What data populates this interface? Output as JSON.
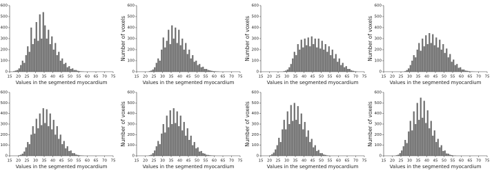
{
  "chart_data": [
    {
      "type": "histogram",
      "xlabel": "Values in the segmented myocardium",
      "color": "#6e6e6e",
      "xlim": [
        15,
        75
      ],
      "ylim": [
        0,
        600
      ],
      "xticks": [
        15,
        20,
        25,
        30,
        35,
        40,
        45,
        50,
        55,
        60,
        65,
        70,
        75
      ],
      "yticks": [
        0,
        100,
        200,
        300,
        400,
        500,
        600
      ],
      "bins": [
        17,
        18,
        19,
        20,
        21,
        22,
        23,
        24,
        25,
        26,
        27,
        28,
        29,
        30,
        31,
        32,
        33,
        34,
        35,
        36,
        37,
        38,
        39,
        40,
        41,
        42,
        43,
        44,
        45,
        46,
        47,
        48,
        49,
        50,
        51,
        52,
        53,
        54,
        55,
        56,
        57,
        58
      ],
      "values": [
        5,
        10,
        15,
        30,
        60,
        100,
        80,
        150,
        230,
        180,
        400,
        250,
        300,
        450,
        280,
        520,
        300,
        540,
        420,
        300,
        380,
        250,
        320,
        200,
        260,
        150,
        180,
        100,
        120,
        70,
        80,
        40,
        50,
        25,
        30,
        15,
        15,
        8,
        5,
        3,
        2
      ]
    },
    {
      "type": "histogram",
      "xlabel": "Values in the segmented myocardium",
      "ylabel": "Number of voxels",
      "color": "#6e6e6e",
      "xlim": [
        15,
        75
      ],
      "ylim": [
        0,
        600
      ],
      "xticks": [
        15,
        20,
        25,
        30,
        35,
        40,
        45,
        50,
        55,
        60,
        65,
        70,
        75
      ],
      "yticks": [
        0,
        100,
        200,
        300,
        400,
        500,
        600
      ],
      "bins": [
        22,
        23,
        24,
        25,
        26,
        27,
        28,
        29,
        30,
        31,
        32,
        33,
        34,
        35,
        36,
        37,
        38,
        39,
        40,
        41,
        42,
        43,
        44,
        45,
        46,
        47,
        48,
        49,
        50,
        51,
        52,
        53,
        54,
        55,
        56,
        57,
        58,
        59,
        60,
        61,
        62,
        63
      ],
      "values": [
        5,
        10,
        20,
        40,
        80,
        120,
        100,
        200,
        310,
        220,
        280,
        380,
        250,
        420,
        300,
        400,
        260,
        380,
        240,
        300,
        200,
        260,
        160,
        200,
        120,
        150,
        90,
        100,
        60,
        70,
        40,
        45,
        25,
        25,
        15,
        12,
        8,
        5,
        4,
        3,
        2
      ]
    },
    {
      "type": "histogram",
      "xlabel": "Values in the segmented myocardium",
      "ylabel": "Number of voxels",
      "color": "#6e6e6e",
      "xlim": [
        15,
        75
      ],
      "ylim": [
        0,
        600
      ],
      "xticks": [
        15,
        20,
        25,
        30,
        35,
        40,
        45,
        50,
        55,
        60,
        65,
        70,
        75
      ],
      "yticks": [
        0,
        100,
        200,
        300,
        400,
        500,
        600
      ],
      "bins": [
        28,
        29,
        30,
        31,
        32,
        33,
        34,
        35,
        36,
        37,
        38,
        39,
        40,
        41,
        42,
        43,
        44,
        45,
        46,
        47,
        48,
        49,
        50,
        51,
        52,
        53,
        54,
        55,
        56,
        57,
        58,
        59,
        60,
        61,
        62,
        63,
        64,
        65,
        66,
        67,
        68,
        69,
        70,
        71
      ],
      "values": [
        5,
        10,
        20,
        40,
        70,
        120,
        180,
        150,
        250,
        200,
        290,
        220,
        300,
        240,
        310,
        230,
        320,
        250,
        300,
        220,
        300,
        210,
        280,
        200,
        250,
        180,
        230,
        150,
        200,
        120,
        160,
        90,
        120,
        60,
        80,
        40,
        50,
        25,
        25,
        12,
        8,
        4,
        2
      ]
    },
    {
      "type": "histogram",
      "xlabel": "Values in the segmented myocardium",
      "ylabel": "Number of voxels",
      "color": "#6e6e6e",
      "xlim": [
        15,
        75
      ],
      "ylim": [
        0,
        600
      ],
      "xticks": [
        15,
        20,
        25,
        30,
        35,
        40,
        45,
        50,
        55,
        60,
        65,
        70,
        75
      ],
      "yticks": [
        0,
        100,
        200,
        300,
        400,
        500,
        600
      ],
      "bins": [
        27,
        28,
        29,
        30,
        31,
        32,
        33,
        34,
        35,
        36,
        37,
        38,
        39,
        40,
        41,
        42,
        43,
        44,
        45,
        46,
        47,
        48,
        49,
        50,
        51,
        52,
        53,
        54,
        55,
        56,
        57,
        58,
        59,
        60,
        61,
        62,
        63,
        64,
        65,
        66,
        67,
        68
      ],
      "values": [
        5,
        15,
        30,
        60,
        100,
        150,
        130,
        200,
        260,
        190,
        300,
        230,
        330,
        250,
        350,
        260,
        340,
        240,
        310,
        220,
        290,
        200,
        250,
        170,
        210,
        130,
        160,
        90,
        110,
        60,
        70,
        35,
        40,
        20,
        20,
        10,
        8,
        5,
        3,
        2,
        1
      ]
    },
    {
      "type": "histogram",
      "xlabel": "Values in the segmented myocardium",
      "color": "#6e6e6e",
      "xlim": [
        15,
        75
      ],
      "ylim": [
        0,
        600
      ],
      "xticks": [
        15,
        20,
        25,
        30,
        35,
        40,
        45,
        50,
        55,
        60,
        65,
        70,
        75
      ],
      "yticks": [
        0,
        100,
        200,
        300,
        400,
        500,
        600
      ],
      "bins": [
        20,
        21,
        22,
        23,
        24,
        25,
        26,
        27,
        28,
        29,
        30,
        31,
        32,
        33,
        34,
        35,
        36,
        37,
        38,
        39,
        40,
        41,
        42,
        43,
        44,
        45,
        46,
        47,
        48,
        49,
        50,
        51,
        52,
        53,
        54,
        55,
        56,
        57,
        58
      ],
      "values": [
        5,
        10,
        20,
        40,
        80,
        130,
        110,
        200,
        280,
        210,
        350,
        260,
        400,
        290,
        450,
        310,
        440,
        280,
        400,
        250,
        340,
        200,
        280,
        160,
        200,
        110,
        140,
        70,
        90,
        45,
        50,
        25,
        25,
        12,
        8,
        5,
        3,
        2
      ]
    },
    {
      "type": "histogram",
      "xlabel": "Values in the segmented myocardium",
      "ylabel": "Number of voxels",
      "color": "#6e6e6e",
      "xlim": [
        15,
        75
      ],
      "ylim": [
        0,
        600
      ],
      "xticks": [
        15,
        20,
        25,
        30,
        35,
        40,
        45,
        50,
        55,
        60,
        65,
        70,
        75
      ],
      "yticks": [
        0,
        100,
        200,
        300,
        400,
        500,
        600
      ],
      "bins": [
        22,
        23,
        24,
        25,
        26,
        27,
        28,
        29,
        30,
        31,
        32,
        33,
        34,
        35,
        36,
        37,
        38,
        39,
        40,
        41,
        42,
        43,
        44,
        45,
        46,
        47,
        48,
        49,
        50,
        51,
        52,
        53,
        54,
        55,
        56,
        57,
        58,
        59,
        60,
        61
      ],
      "values": [
        5,
        10,
        25,
        50,
        90,
        140,
        110,
        210,
        300,
        220,
        380,
        270,
        430,
        300,
        450,
        310,
        420,
        280,
        380,
        240,
        320,
        190,
        260,
        150,
        190,
        100,
        130,
        70,
        80,
        40,
        45,
        25,
        20,
        10,
        8,
        5,
        3,
        2,
        1
      ]
    },
    {
      "type": "histogram",
      "xlabel": "Values in the segmented myocardium",
      "ylabel": "Number of voxels",
      "color": "#6e6e6e",
      "xlim": [
        15,
        75
      ],
      "ylim": [
        0,
        600
      ],
      "xticks": [
        15,
        20,
        25,
        30,
        35,
        40,
        45,
        50,
        55,
        60,
        65,
        70,
        75
      ],
      "yticks": [
        0,
        100,
        200,
        300,
        400,
        500,
        600
      ],
      "bins": [
        20,
        21,
        22,
        23,
        24,
        25,
        26,
        27,
        28,
        29,
        30,
        31,
        32,
        33,
        34,
        35,
        36,
        37,
        38,
        39,
        40,
        41,
        42,
        43,
        44,
        45,
        46,
        47,
        48,
        49,
        50,
        51,
        52,
        53,
        54,
        55
      ],
      "values": [
        5,
        15,
        30,
        60,
        100,
        170,
        130,
        250,
        340,
        250,
        420,
        300,
        480,
        330,
        500,
        340,
        470,
        300,
        400,
        250,
        320,
        180,
        240,
        130,
        160,
        80,
        100,
        45,
        55,
        25,
        25,
        12,
        8,
        4,
        2
      ]
    },
    {
      "type": "histogram",
      "xlabel": "Values in the segmented myocardium",
      "ylabel": "Number of voxels",
      "color": "#6e6e6e",
      "xlim": [
        15,
        75
      ],
      "ylim": [
        0,
        600
      ],
      "xticks": [
        15,
        20,
        25,
        30,
        35,
        40,
        45,
        50,
        55,
        60,
        65,
        70,
        75
      ],
      "yticks": [
        0,
        100,
        200,
        300,
        400,
        500,
        600
      ],
      "bins": [
        22,
        23,
        24,
        25,
        26,
        27,
        28,
        29,
        30,
        31,
        32,
        33,
        34,
        35,
        36,
        37,
        38,
        39,
        40,
        41,
        42,
        43,
        44,
        45,
        46,
        47,
        48,
        49,
        50,
        51,
        52,
        53,
        54,
        55,
        56,
        57
      ],
      "values": [
        5,
        10,
        25,
        50,
        90,
        150,
        120,
        230,
        330,
        240,
        420,
        300,
        500,
        340,
        550,
        360,
        520,
        310,
        430,
        260,
        330,
        190,
        240,
        130,
        160,
        80,
        100,
        45,
        50,
        22,
        20,
        10,
        6,
        3,
        2
      ]
    }
  ]
}
